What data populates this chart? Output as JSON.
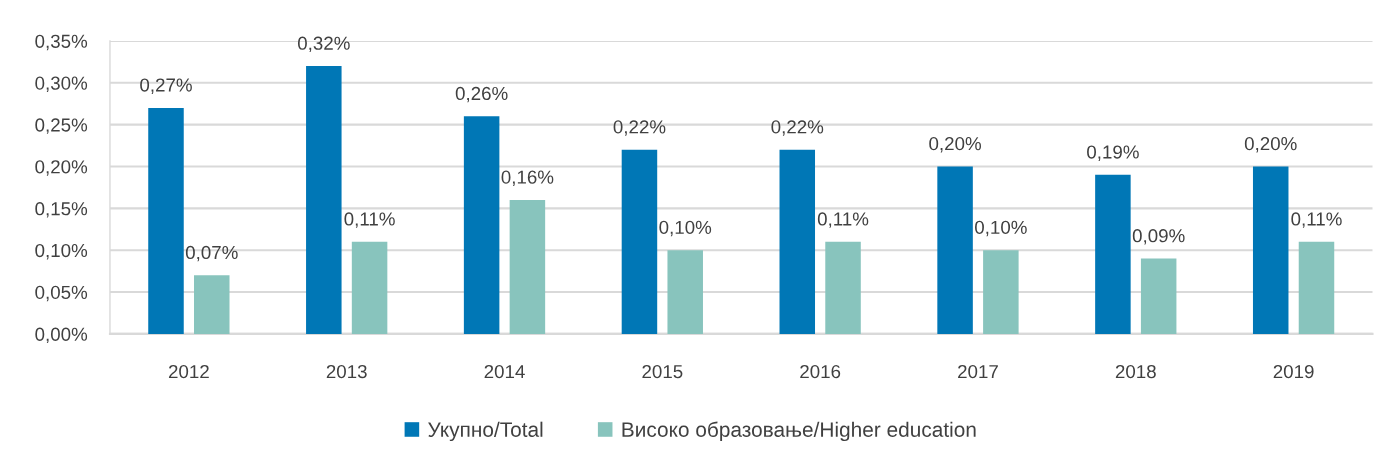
{
  "chart_data": {
    "type": "bar",
    "categories": [
      "2012",
      "2013",
      "2014",
      "2015",
      "2016",
      "2017",
      "2018",
      "2019"
    ],
    "series": [
      {
        "name": "Укупно/Total",
        "color": "#0077b6",
        "values": [
          0.27,
          0.32,
          0.26,
          0.22,
          0.22,
          0.2,
          0.19,
          0.2
        ],
        "value_labels": [
          "0,27%",
          "0,32%",
          "0,26%",
          "0,22%",
          "0,22%",
          "0,20%",
          "0,19%",
          "0,20%"
        ]
      },
      {
        "name": "Високо образовање/Higher education",
        "color": "#88c4bd",
        "values": [
          0.07,
          0.11,
          0.16,
          0.1,
          0.11,
          0.1,
          0.09,
          0.11
        ],
        "value_labels": [
          "0,07%",
          "0,11%",
          "0,16%",
          "0,10%",
          "0,11%",
          "0,10%",
          "0,09%",
          "0,11%"
        ]
      }
    ],
    "ylim": [
      0,
      0.35
    ],
    "yticks": [
      {
        "value": 0,
        "label": "0,00%"
      },
      {
        "value": 0.05,
        "label": "0,05%"
      },
      {
        "value": 0.1,
        "label": "0,10%"
      },
      {
        "value": 0.15,
        "label": "0,15%"
      },
      {
        "value": 0.2,
        "label": "0,20%"
      },
      {
        "value": 0.25,
        "label": "0,25%"
      },
      {
        "value": 0.3,
        "label": "0,30%"
      },
      {
        "value": 0.35,
        "label": "0,35%"
      }
    ],
    "grid": "y",
    "legend": "bottom"
  }
}
